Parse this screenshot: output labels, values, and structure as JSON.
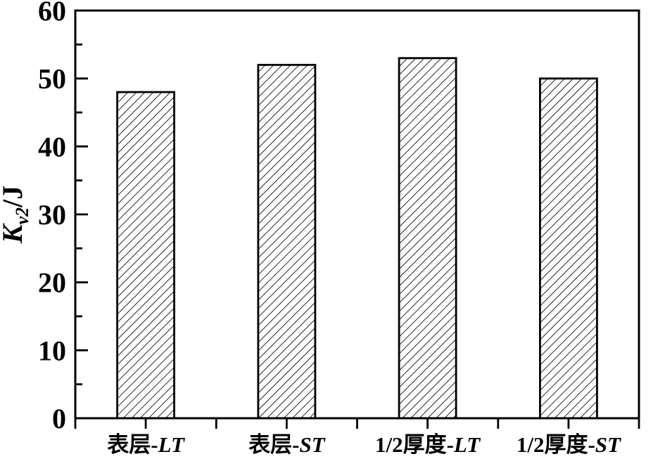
{
  "figure": {
    "background_color": "#ffffff",
    "ink_color": "#000000"
  },
  "chart_data": {
    "type": "bar",
    "categories": [
      "表层-LT",
      "表层-ST",
      "1/2厚度-LT",
      "1/2厚度-ST"
    ],
    "values": [
      48,
      52,
      53,
      50
    ],
    "title": "",
    "xlabel": "",
    "ylabel": "Kv2/J",
    "ylabel_parts": {
      "symbol": "K",
      "subscript": "v2",
      "unit": "/J"
    },
    "ylim": [
      0,
      60
    ],
    "ytick_major": 10,
    "ytick_minor": 5,
    "ytick_labels": [
      "0",
      "10",
      "20",
      "30",
      "40",
      "50",
      "60"
    ],
    "xtick_count": 9,
    "grid": false,
    "legend": null,
    "bar_fill": "diagonal-hatch",
    "hatch_direction": "/",
    "category_italic_delimiter": "-",
    "ink_color": "#000000",
    "background_color": "#ffffff"
  }
}
